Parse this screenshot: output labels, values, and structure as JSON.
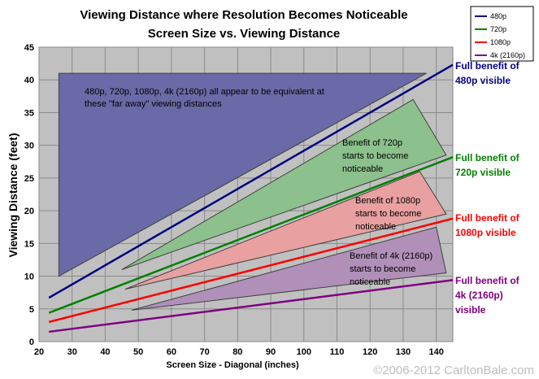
{
  "chart_data": {
    "type": "line",
    "title": "Viewing Distance where Resolution Becomes Noticeable",
    "subtitle": "Screen Size vs. Viewing Distance",
    "xlabel": "Screen Size - Diagonal (inches)",
    "ylabel": "Viewing Distance (feet)",
    "xlim": [
      20,
      145
    ],
    "ylim": [
      0,
      45
    ],
    "x_ticks": [
      20,
      30,
      40,
      50,
      60,
      70,
      80,
      90,
      100,
      110,
      120,
      130,
      140
    ],
    "y_ticks": [
      0,
      5,
      10,
      15,
      20,
      25,
      30,
      35,
      40,
      45
    ],
    "grid": true,
    "legend_position": "top-right",
    "series": [
      {
        "name": "480p",
        "color": "#000080",
        "x": [
          23,
          145
        ],
        "y": [
          6.7,
          42.3
        ]
      },
      {
        "name": "720p",
        "color": "#008000",
        "x": [
          23,
          145
        ],
        "y": [
          4.4,
          28.2
        ]
      },
      {
        "name": "1080p",
        "color": "#ff0000",
        "x": [
          23,
          145
        ],
        "y": [
          3.0,
          18.8
        ]
      },
      {
        "name": "4k (2160p)",
        "color": "#800080",
        "x": [
          23,
          145
        ],
        "y": [
          1.5,
          9.4
        ]
      }
    ],
    "regions": [
      {
        "color": "#6a6aa8",
        "points": [
          [
            26,
            41
          ],
          [
            137,
            41
          ],
          [
            26,
            10
          ]
        ],
        "text": [
          "480p, 720p, 1080p, 4k (2160p) all appear to be equivalent at",
          "these \"far away\" viewing distances"
        ]
      },
      {
        "color": "#8cc08c",
        "points": [
          [
            133,
            37
          ],
          [
            143,
            28.5
          ],
          [
            45,
            11
          ]
        ],
        "text": [
          "Benefit of 720p",
          "starts to become",
          "noticeable"
        ]
      },
      {
        "color": "#e8a0a0",
        "points": [
          [
            135,
            26
          ],
          [
            143,
            19.5
          ],
          [
            46,
            8
          ]
        ],
        "text": [
          "Benefit of 1080p",
          "starts to become",
          "noticeable"
        ]
      },
      {
        "color": "#b090b8",
        "points": [
          [
            140,
            17.5
          ],
          [
            143,
            10.5
          ],
          [
            48,
            4.8
          ]
        ],
        "text": [
          "Benefit of 4k (2160p)",
          "starts to become",
          "noticeable"
        ]
      }
    ],
    "end_labels": [
      {
        "lines": [
          "Full benefit of",
          "480p visible"
        ],
        "color": "#000080"
      },
      {
        "lines": [
          "Full benefit of",
          "720p visible"
        ],
        "color": "#008000"
      },
      {
        "lines": [
          "Full benefit of",
          "1080p visible"
        ],
        "color": "#ff0000"
      },
      {
        "lines": [
          "Full benefit of",
          "4k (2160p)",
          "visible"
        ],
        "color": "#800080"
      }
    ],
    "copyright": "©2006-2012 CarltonBale.com"
  }
}
